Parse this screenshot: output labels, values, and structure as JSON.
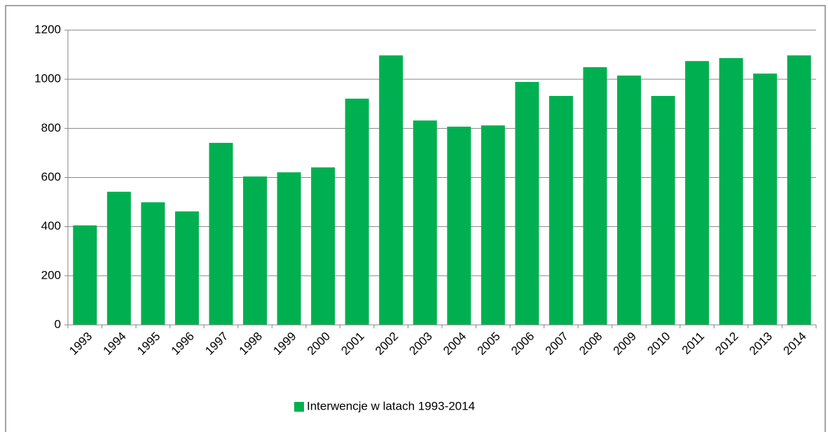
{
  "chart_data": {
    "type": "bar",
    "categories": [
      "1993",
      "1994",
      "1995",
      "1996",
      "1997",
      "1998",
      "1999",
      "2000",
      "2001",
      "2002",
      "2003",
      "2004",
      "2005",
      "2006",
      "2007",
      "2008",
      "2009",
      "2010",
      "2011",
      "2012",
      "2013",
      "2014"
    ],
    "series": [
      {
        "name": "Interwencje w latach 1993-2014",
        "color": "#00b050",
        "values": [
          405,
          542,
          499,
          462,
          741,
          604,
          621,
          641,
          921,
          1097,
          832,
          807,
          812,
          989,
          932,
          1049,
          1015,
          932,
          1074,
          1086,
          1023,
          1097
        ]
      }
    ],
    "ylim": [
      0,
      1200
    ],
    "yticks": [
      0,
      200,
      400,
      600,
      800,
      1000,
      1200
    ],
    "grid": true,
    "legend": "bottom"
  }
}
